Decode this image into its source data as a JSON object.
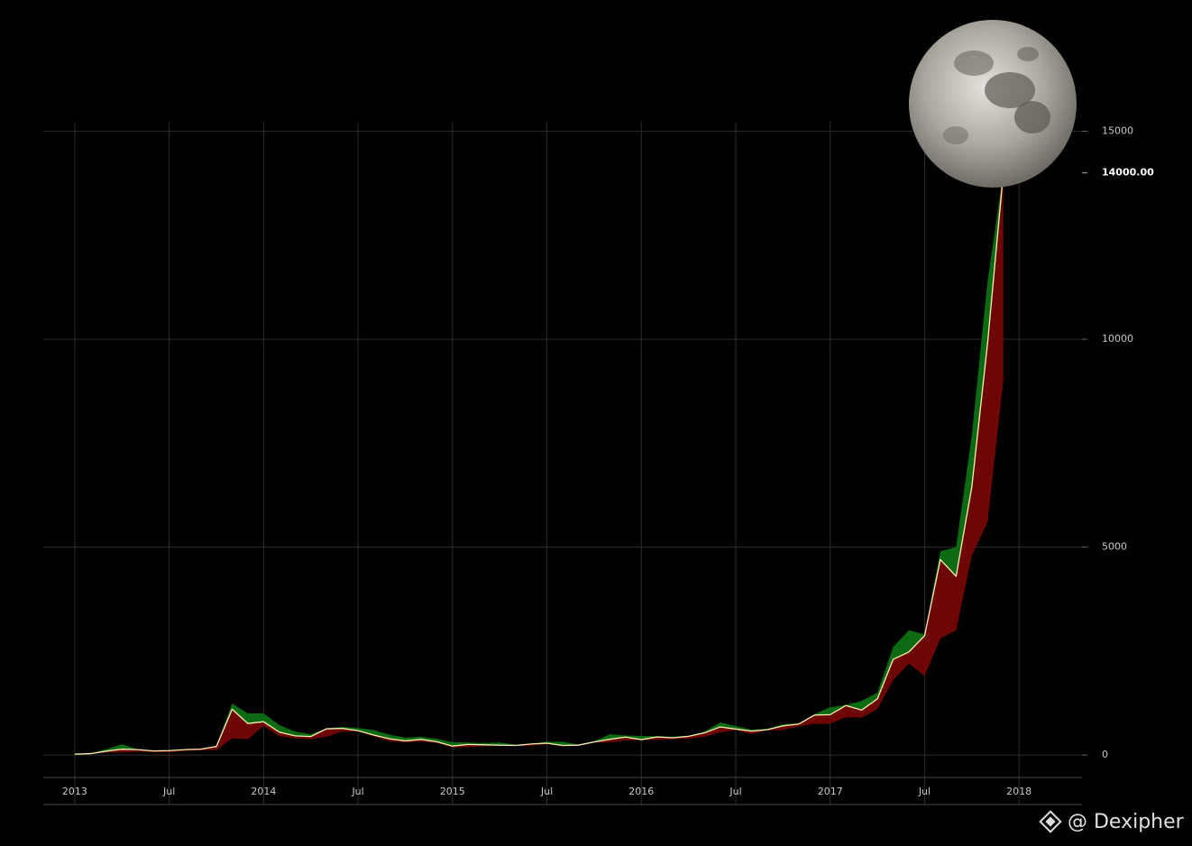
{
  "chart_data": {
    "type": "line",
    "x": [
      "2013-01",
      "2013-02",
      "2013-03",
      "2013-04",
      "2013-05",
      "2013-06",
      "2013-07",
      "2013-08",
      "2013-09",
      "2013-10",
      "2013-11",
      "2013-12",
      "2014-01",
      "2014-02",
      "2014-03",
      "2014-04",
      "2014-05",
      "2014-06",
      "2014-07",
      "2014-08",
      "2014-09",
      "2014-10",
      "2014-11",
      "2014-12",
      "2015-01",
      "2015-02",
      "2015-03",
      "2015-04",
      "2015-05",
      "2015-06",
      "2015-07",
      "2015-08",
      "2015-09",
      "2015-10",
      "2015-11",
      "2015-12",
      "2016-01",
      "2016-02",
      "2016-03",
      "2016-04",
      "2016-05",
      "2016-06",
      "2016-07",
      "2016-08",
      "2016-09",
      "2016-10",
      "2016-11",
      "2016-12",
      "2017-01",
      "2017-02",
      "2017-03",
      "2017-04",
      "2017-05",
      "2017-06",
      "2017-07",
      "2017-08",
      "2017-09",
      "2017-10",
      "2017-11",
      "2017-12"
    ],
    "series": [
      {
        "color": "#f5f0b0",
        "values": [
          20,
          33,
          93,
          139,
          129,
          97,
          106,
          129,
          141,
          206,
          1100,
          757,
          800,
          550,
          460,
          445,
          630,
          640,
          585,
          480,
          390,
          340,
          375,
          320,
          215,
          255,
          245,
          235,
          230,
          265,
          285,
          230,
          237,
          315,
          378,
          430,
          370,
          435,
          415,
          450,
          530,
          675,
          625,
          575,
          610,
          700,
          745,
          960,
          970,
          1190,
          1080,
          1350,
          2300,
          2480,
          2870,
          4700,
          4300,
          6450,
          9900,
          14000
        ]
      },
      {
        "color": "#0b6a12",
        "values": [
          22,
          38,
          140,
          260,
          135,
          110,
          115,
          130,
          145,
          220,
          1240,
          1000,
          1000,
          720,
          560,
          500,
          640,
          680,
          650,
          600,
          490,
          420,
          440,
          390,
          310,
          300,
          290,
          300,
          250,
          270,
          320,
          320,
          250,
          330,
          500,
          470,
          460,
          450,
          440,
          460,
          560,
          780,
          700,
          610,
          630,
          740,
          760,
          980,
          1150,
          1200,
          1300,
          1500,
          2600,
          3000,
          2900,
          4900,
          5000,
          7700,
          11400,
          14000
        ]
      },
      {
        "color": "#6e0606",
        "values": [
          13,
          20,
          60,
          60,
          80,
          68,
          66,
          100,
          110,
          120,
          400,
          380,
          700,
          450,
          400,
          380,
          440,
          560,
          570,
          450,
          330,
          300,
          320,
          290,
          180,
          190,
          210,
          220,
          220,
          220,
          260,
          210,
          220,
          300,
          300,
          350,
          360,
          360,
          380,
          390,
          440,
          540,
          600,
          500,
          590,
          600,
          690,
          750,
          750,
          910,
          900,
          1100,
          1800,
          2200,
          1900,
          2800,
          3000,
          4800,
          5600,
          9000
        ]
      }
    ],
    "xlim": [
      "2012-11",
      "2018-05"
    ],
    "xticks": [
      {
        "value": "2013-01",
        "label": "2013"
      },
      {
        "value": "2013-07",
        "label": "Jul"
      },
      {
        "value": "2014-01",
        "label": "2014"
      },
      {
        "value": "2014-07",
        "label": "Jul"
      },
      {
        "value": "2015-01",
        "label": "2015"
      },
      {
        "value": "2015-07",
        "label": "Jul"
      },
      {
        "value": "2016-01",
        "label": "2016"
      },
      {
        "value": "2016-07",
        "label": "Jul"
      },
      {
        "value": "2017-01",
        "label": "2017"
      },
      {
        "value": "2017-07",
        "label": "Jul"
      },
      {
        "value": "2018-01",
        "label": "2018"
      }
    ],
    "ylim": [
      -540,
      15230
    ],
    "yticks": [
      0,
      5000,
      10000,
      15000
    ],
    "current_price": {
      "value": 14000,
      "label": "14000.00"
    },
    "grid": true,
    "watermark": "@ Dexipher"
  }
}
